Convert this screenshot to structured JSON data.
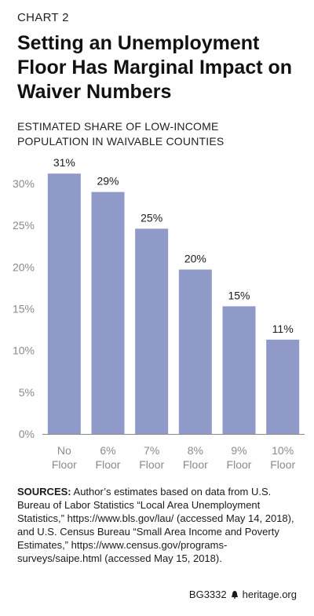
{
  "header": {
    "label": "CHART 2",
    "title": "Setting an Unemployment Floor Has Marginal Impact on Waiver Numbers",
    "subtitle_lines": [
      "ESTIMATED SHARE OF LOW-INCOME",
      "POPULATION IN WAIVABLE COUNTIES"
    ]
  },
  "chart_data": {
    "type": "bar",
    "title": "Setting an Unemployment Floor Has Marginal Impact on Waiver Numbers",
    "subtitle": "ESTIMATED SHARE OF LOW-INCOME POPULATION IN WAIVABLE COUNTIES",
    "categories": [
      [
        "No",
        "Floor"
      ],
      [
        "6%",
        "Floor"
      ],
      [
        "7%",
        "Floor"
      ],
      [
        "8%",
        "Floor"
      ],
      [
        "9%",
        "Floor"
      ],
      [
        "10%",
        "Floor"
      ]
    ],
    "values": [
      31.2,
      29.0,
      24.6,
      19.7,
      15.3,
      11.3
    ],
    "value_labels": [
      "31%",
      "29%",
      "25%",
      "20%",
      "15%",
      "11%"
    ],
    "ylim": [
      0,
      30
    ],
    "yticks": [
      0,
      5,
      10,
      15,
      20,
      25,
      30
    ],
    "ytick_labels": [
      "0%",
      "5%",
      "10%",
      "15%",
      "20%",
      "25%",
      "30%"
    ],
    "grid": false,
    "legend": "none",
    "bar_color": "#8f9ac9"
  },
  "sources": {
    "lead": "SOURCES:",
    "text": " Author’s estimates based on data from U.S. Bureau of Labor Statistics “Local Area Unemployment Statistics,” https://www.bls.gov/lau/ (accessed May 14, 2018), and U.S. Census Bureau “Small Area Income and Poverty Estimates,” https://www.census.gov/programs-surveys/saipe.html (accessed May 15, 2018)."
  },
  "footer": {
    "code": "BG3332",
    "site": "heritage.org",
    "icon": "liberty-bell-icon"
  }
}
